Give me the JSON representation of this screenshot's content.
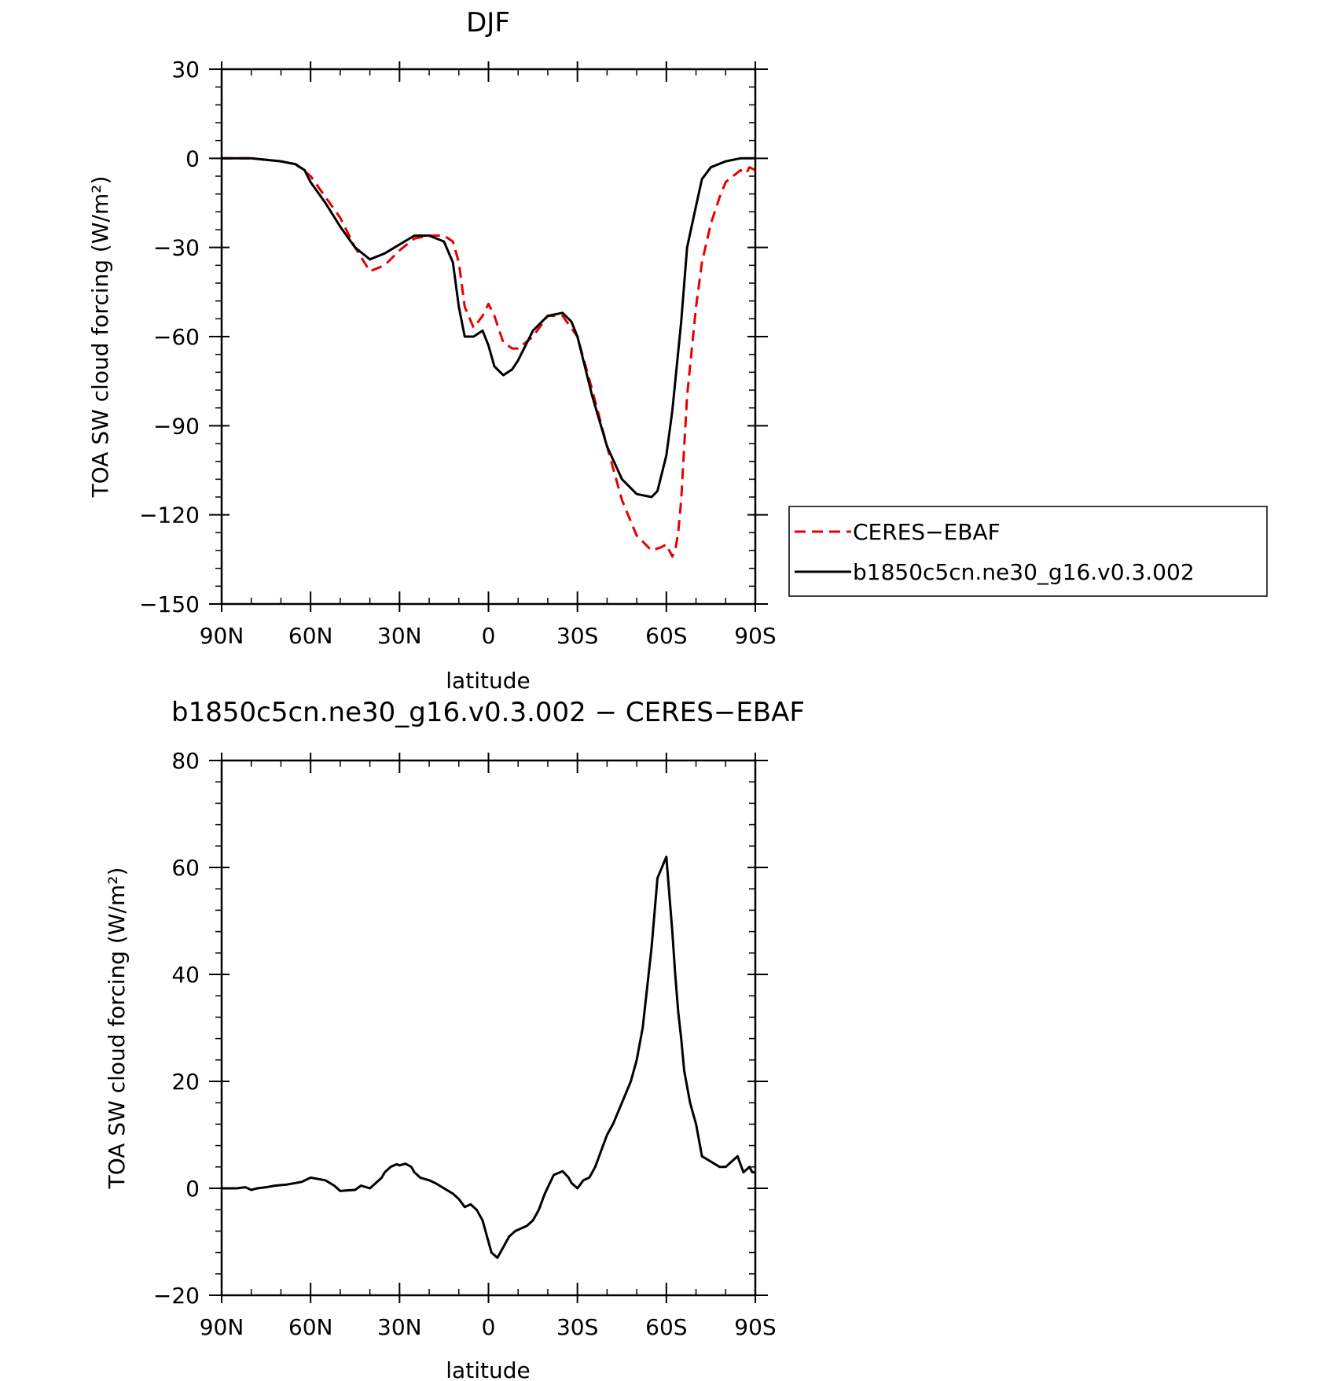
{
  "chart_data": [
    {
      "type": "line",
      "title": "DJF",
      "xlabel": "latitude",
      "ylabel": "TOA SW cloud forcing (W/m²)",
      "xlim": [
        90,
        -90
      ],
      "ylim": [
        -150,
        30
      ],
      "x_ticks": [
        90,
        60,
        30,
        0,
        -30,
        -60,
        -90
      ],
      "x_tick_labels": [
        "90N",
        "60N",
        "30N",
        "0",
        "30S",
        "60S",
        "90S"
      ],
      "y_ticks": [
        30,
        0,
        -30,
        -60,
        -90,
        -120,
        -150
      ],
      "y_tick_labels": [
        "30",
        "0",
        "−30",
        "−60",
        "−90",
        "−120",
        "−150"
      ],
      "legend": "right",
      "series": [
        {
          "name": "CERES−EBAF",
          "color": "#e60000",
          "dash": "dashed",
          "x": [
            90,
            80,
            70,
            65,
            60,
            55,
            50,
            45,
            40,
            35,
            30,
            25,
            20,
            15,
            12,
            10,
            8,
            5,
            2,
            0,
            -2,
            -5,
            -8,
            -10,
            -15,
            -20,
            -25,
            -30,
            -35,
            -40,
            -45,
            -50,
            -55,
            -58,
            -60,
            -62,
            -63,
            -64,
            -65,
            -67,
            -70,
            -72,
            -75,
            -78,
            -80,
            -85,
            -87,
            -88,
            -90
          ],
          "y": [
            0,
            0,
            -1,
            -2,
            -6,
            -13,
            -20,
            -30,
            -38,
            -36,
            -31,
            -27,
            -26,
            -26,
            -28,
            -35,
            -50,
            -57,
            -53,
            -49,
            -53,
            -62,
            -64,
            -64,
            -60,
            -53,
            -53,
            -60,
            -78,
            -97,
            -115,
            -127,
            -132,
            -131,
            -130,
            -134,
            -132,
            -126,
            -115,
            -80,
            -50,
            -35,
            -22,
            -13,
            -8,
            -4,
            -5,
            -3,
            -4
          ]
        },
        {
          "name": "b1850c5cn.ne30_g16.v0.3.002",
          "color": "#000000",
          "dash": "solid",
          "x": [
            90,
            80,
            70,
            65,
            62,
            60,
            55,
            50,
            45,
            40,
            35,
            30,
            25,
            20,
            15,
            12,
            10,
            8,
            5,
            2,
            0,
            -2,
            -5,
            -8,
            -10,
            -15,
            -20,
            -25,
            -28,
            -30,
            -35,
            -40,
            -45,
            -50,
            -55,
            -57,
            -60,
            -62,
            -65,
            -67,
            -70,
            -72,
            -75,
            -80,
            -85,
            -90
          ],
          "y": [
            0,
            0,
            -1,
            -2,
            -4,
            -8,
            -15,
            -23,
            -30,
            -34,
            -32,
            -29,
            -26,
            -26,
            -28,
            -35,
            -50,
            -60,
            -60,
            -58,
            -63,
            -70,
            -73,
            -71,
            -68,
            -58,
            -53,
            -52,
            -55,
            -60,
            -80,
            -97,
            -108,
            -113,
            -114,
            -112,
            -100,
            -85,
            -55,
            -30,
            -16,
            -7,
            -3,
            -1,
            0,
            0
          ]
        }
      ]
    },
    {
      "type": "line",
      "title": "b1850c5cn.ne30_g16.v0.3.002 − CERES−EBAF",
      "xlabel": "latitude",
      "ylabel": "TOA SW cloud forcing (W/m²)",
      "xlim": [
        90,
        -90
      ],
      "ylim": [
        -20,
        80
      ],
      "x_ticks": [
        90,
        60,
        30,
        0,
        -30,
        -60,
        -90
      ],
      "x_tick_labels": [
        "90N",
        "60N",
        "30N",
        "0",
        "30S",
        "60S",
        "90S"
      ],
      "y_ticks": [
        80,
        60,
        40,
        20,
        0,
        -20
      ],
      "y_tick_labels": [
        "80",
        "60",
        "40",
        "20",
        "0",
        "−20"
      ],
      "series": [
        {
          "color": "#000000",
          "dash": "solid",
          "x": [
            90,
            85,
            82,
            80,
            78,
            75,
            72,
            70,
            68,
            65,
            63,
            60,
            55,
            52,
            50,
            48,
            45,
            43,
            40,
            38,
            36,
            35,
            33,
            31,
            30,
            28,
            26,
            25,
            23,
            20,
            18,
            15,
            12,
            10,
            8,
            6,
            5,
            4,
            2,
            0,
            -1,
            -3,
            -4,
            -6,
            -7,
            -9,
            -11,
            -13,
            -15,
            -17,
            -19,
            -22,
            -25,
            -27,
            -28,
            -30,
            -32,
            -34,
            -36,
            -38,
            -40,
            -42,
            -45,
            -48,
            -50,
            -52,
            -55,
            -57,
            -60,
            -61,
            -62,
            -63,
            -64,
            -65,
            -66,
            -68,
            -70,
            -72,
            -75,
            -78,
            -80,
            -82,
            -84,
            -86,
            -88,
            -89,
            -90
          ],
          "y": [
            0,
            0,
            0.2,
            -0.3,
            0,
            0.2,
            0.5,
            0.6,
            0.7,
            1,
            1.2,
            2,
            1.5,
            0.5,
            -0.5,
            -0.4,
            -0.3,
            0.5,
            0,
            1,
            2,
            3,
            4,
            4.5,
            4.3,
            4.6,
            4,
            3,
            2,
            1.5,
            1,
            0,
            -1,
            -2,
            -3.5,
            -3,
            -3.5,
            -4,
            -6,
            -10,
            -12,
            -13,
            -12,
            -10,
            -9,
            -8,
            -7.5,
            -7,
            -6,
            -4,
            -1,
            2.5,
            3.2,
            2,
            1,
            0,
            1.5,
            2,
            4,
            7,
            10,
            12,
            16,
            20,
            24,
            30,
            45,
            58,
            62,
            55,
            48,
            40,
            33,
            28,
            22,
            16,
            12,
            6,
            5,
            4,
            4,
            5,
            6,
            3,
            4,
            3,
            3
          ]
        }
      ]
    }
  ]
}
